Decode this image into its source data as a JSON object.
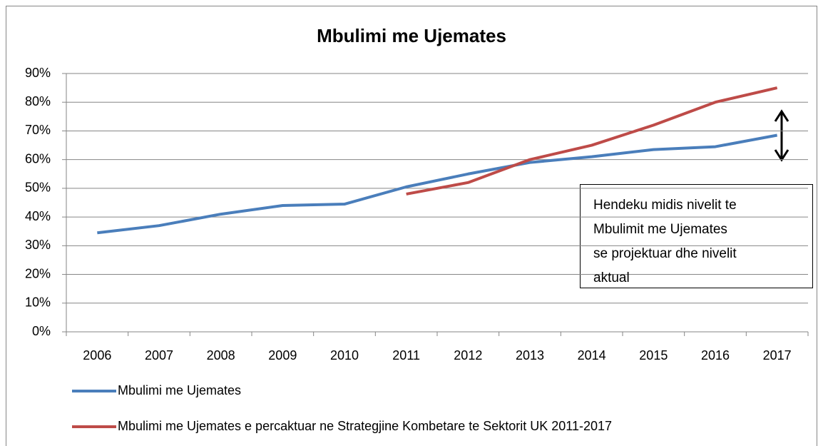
{
  "chart_data": {
    "type": "line",
    "title": "Mbulimi me Ujemates",
    "categories": [
      "2006",
      "2007",
      "2008",
      "2009",
      "2010",
      "2011",
      "2012",
      "2013",
      "2014",
      "2015",
      "2016",
      "2017"
    ],
    "series": [
      {
        "name": "Mbulimi me Ujemates",
        "color": "#4a7ebb",
        "values": [
          34.5,
          37,
          41,
          44,
          44.5,
          50.5,
          55,
          59,
          61,
          63.5,
          64.5,
          68.5
        ]
      },
      {
        "name": "Mbulimi me Ujemates e percaktuar ne Strategjine Kombetare te Sektorit UK 2011-2017",
        "color": "#be4b48",
        "values": [
          null,
          null,
          null,
          null,
          null,
          48,
          52,
          60,
          65,
          72,
          80,
          85
        ]
      }
    ],
    "ylim": [
      0,
      90
    ],
    "yticks": [
      {
        "value": 0,
        "label": "0%"
      },
      {
        "value": 10,
        "label": "10%"
      },
      {
        "value": 20,
        "label": "20%"
      },
      {
        "value": 30,
        "label": "30%"
      },
      {
        "value": 40,
        "label": "40%"
      },
      {
        "value": 50,
        "label": "50%"
      },
      {
        "value": 60,
        "label": "60%"
      },
      {
        "value": 70,
        "label": "70%"
      },
      {
        "value": 80,
        "label": "80%"
      },
      {
        "value": 90,
        "label": "90%"
      }
    ],
    "grid": true,
    "annotation": [
      "Hendeku midis nivelit te",
      "Mbulimit me Ujemates",
      "se projektuar dhe nivelit",
      "aktual"
    ]
  }
}
